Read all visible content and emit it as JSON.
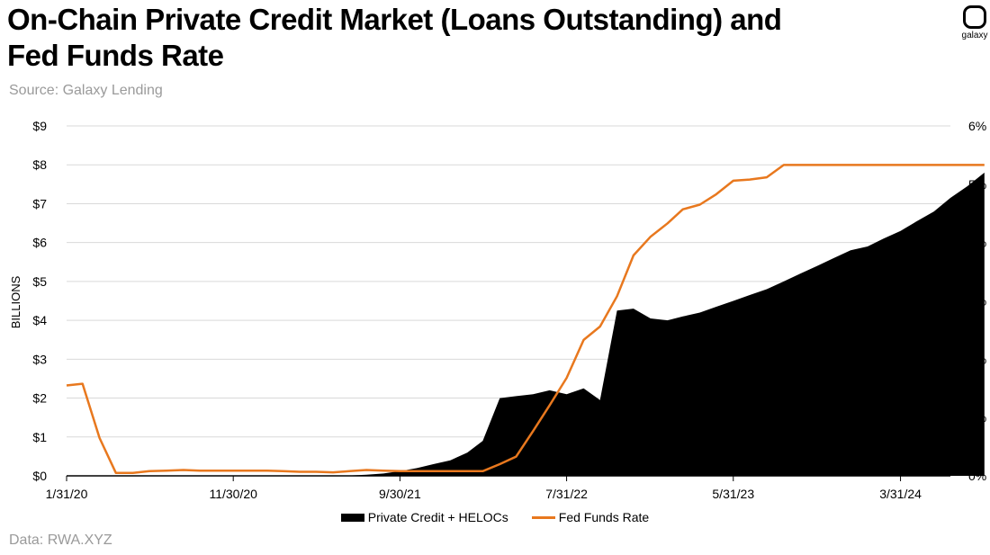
{
  "title": "On-Chain Private Credit Market (Loans Outstanding) and Fed Funds Rate",
  "subtitle": "Source: Galaxy Lending",
  "footer": "Data: RWA.XYZ",
  "logo_text": "galaxy",
  "colors": {
    "area": "#000000",
    "line": "#e8781e",
    "grid": "#d9d9d9"
  },
  "chart_data": {
    "type": "area",
    "ylabel": "BILLIONS",
    "x_ticks": [
      "1/31/20",
      "11/30/20",
      "9/30/21",
      "7/31/22",
      "5/31/23",
      "3/31/24"
    ],
    "y_left_ticks": [
      "$0",
      "$1",
      "$2",
      "$3",
      "$4",
      "$5",
      "$6",
      "$7",
      "$8",
      "$9"
    ],
    "y_right_ticks": [
      "0%",
      "1%",
      "2%",
      "3%",
      "4%",
      "5%",
      "6%"
    ],
    "y_left_lim": [
      0,
      9
    ],
    "y_right_lim": [
      0,
      6
    ],
    "x_range": [
      "2020-01-31",
      "2024-06-30"
    ],
    "grid": "horizontal",
    "legend_position": "bottom",
    "series": [
      {
        "name": "Private Credit + HELOCs",
        "type": "area",
        "axis": "left",
        "points": [
          [
            "2021-03-31",
            0.0
          ],
          [
            "2021-04-30",
            0.0
          ],
          [
            "2021-05-31",
            0.01
          ],
          [
            "2021-06-30",
            0.01
          ],
          [
            "2021-07-31",
            0.03
          ],
          [
            "2021-08-31",
            0.06
          ],
          [
            "2021-09-30",
            0.12
          ],
          [
            "2021-10-31",
            0.2
          ],
          [
            "2021-11-30",
            0.3
          ],
          [
            "2021-12-31",
            0.4
          ],
          [
            "2022-01-31",
            0.6
          ],
          [
            "2022-02-28",
            0.9
          ],
          [
            "2022-03-31",
            2.0
          ],
          [
            "2022-04-30",
            2.05
          ],
          [
            "2022-05-31",
            2.1
          ],
          [
            "2022-06-30",
            2.2
          ],
          [
            "2022-07-31",
            2.1
          ],
          [
            "2022-08-31",
            2.25
          ],
          [
            "2022-09-30",
            1.95
          ],
          [
            "2022-10-31",
            4.25
          ],
          [
            "2022-11-30",
            4.3
          ],
          [
            "2022-12-31",
            4.05
          ],
          [
            "2023-01-31",
            4.0
          ],
          [
            "2023-02-28",
            4.1
          ],
          [
            "2023-03-31",
            4.2
          ],
          [
            "2023-04-30",
            4.35
          ],
          [
            "2023-05-31",
            4.5
          ],
          [
            "2023-06-30",
            4.65
          ],
          [
            "2023-07-31",
            4.8
          ],
          [
            "2023-08-31",
            5.0
          ],
          [
            "2023-09-30",
            5.2
          ],
          [
            "2023-10-31",
            5.4
          ],
          [
            "2023-11-30",
            5.6
          ],
          [
            "2023-12-31",
            5.8
          ],
          [
            "2024-01-31",
            5.9
          ],
          [
            "2024-02-29",
            6.1
          ],
          [
            "2024-03-31",
            6.3
          ],
          [
            "2024-04-30",
            6.55
          ],
          [
            "2024-05-31",
            6.8
          ],
          [
            "2024-06-30",
            7.15
          ],
          [
            "2024-07-31",
            7.45
          ],
          [
            "2024-08-31",
            7.8
          ]
        ]
      },
      {
        "name": "Fed Funds Rate",
        "type": "line",
        "axis": "right",
        "points": [
          [
            "2020-01-31",
            1.55
          ],
          [
            "2020-02-29",
            1.58
          ],
          [
            "2020-03-31",
            0.65
          ],
          [
            "2020-04-30",
            0.05
          ],
          [
            "2020-05-31",
            0.05
          ],
          [
            "2020-06-30",
            0.08
          ],
          [
            "2020-07-31",
            0.09
          ],
          [
            "2020-08-31",
            0.1
          ],
          [
            "2020-09-30",
            0.09
          ],
          [
            "2020-10-31",
            0.09
          ],
          [
            "2020-11-30",
            0.09
          ],
          [
            "2020-12-31",
            0.09
          ],
          [
            "2021-01-31",
            0.09
          ],
          [
            "2021-02-28",
            0.08
          ],
          [
            "2021-03-31",
            0.07
          ],
          [
            "2021-04-30",
            0.07
          ],
          [
            "2021-05-31",
            0.06
          ],
          [
            "2021-06-30",
            0.08
          ],
          [
            "2021-07-31",
            0.1
          ],
          [
            "2021-08-31",
            0.09
          ],
          [
            "2021-09-30",
            0.08
          ],
          [
            "2021-10-31",
            0.08
          ],
          [
            "2021-11-30",
            0.08
          ],
          [
            "2021-12-31",
            0.08
          ],
          [
            "2022-01-31",
            0.08
          ],
          [
            "2022-02-28",
            0.08
          ],
          [
            "2022-03-31",
            0.2
          ],
          [
            "2022-04-30",
            0.33
          ],
          [
            "2022-05-31",
            0.77
          ],
          [
            "2022-06-30",
            1.21
          ],
          [
            "2022-07-31",
            1.68
          ],
          [
            "2022-08-31",
            2.33
          ],
          [
            "2022-09-30",
            2.56
          ],
          [
            "2022-10-31",
            3.08
          ],
          [
            "2022-11-30",
            3.78
          ],
          [
            "2022-12-31",
            4.1
          ],
          [
            "2023-01-31",
            4.33
          ],
          [
            "2023-02-28",
            4.57
          ],
          [
            "2023-03-31",
            4.65
          ],
          [
            "2023-04-30",
            4.83
          ],
          [
            "2023-05-31",
            5.06
          ],
          [
            "2023-06-30",
            5.08
          ],
          [
            "2023-07-31",
            5.12
          ],
          [
            "2023-08-31",
            5.33
          ],
          [
            "2023-09-30",
            5.33
          ],
          [
            "2023-10-31",
            5.33
          ],
          [
            "2023-11-30",
            5.33
          ],
          [
            "2023-12-31",
            5.33
          ],
          [
            "2024-01-31",
            5.33
          ],
          [
            "2024-02-29",
            5.33
          ],
          [
            "2024-03-31",
            5.33
          ],
          [
            "2024-04-30",
            5.33
          ],
          [
            "2024-05-31",
            5.33
          ],
          [
            "2024-06-30",
            5.33
          ],
          [
            "2024-07-31",
            5.33
          ],
          [
            "2024-08-31",
            5.33
          ]
        ]
      }
    ]
  }
}
